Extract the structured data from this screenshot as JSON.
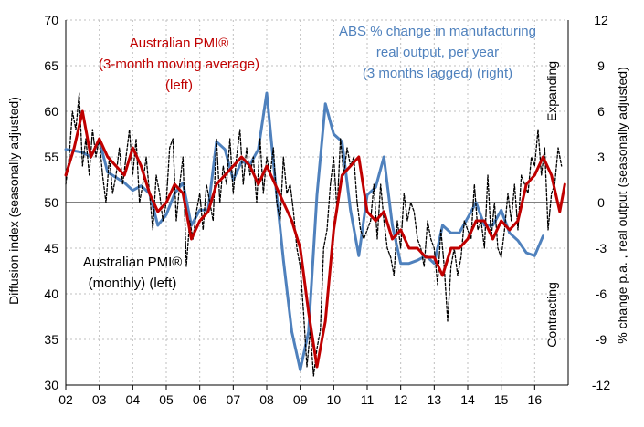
{
  "chart_data": {
    "type": "line",
    "title": "",
    "left_axis": {
      "label": "Diffusion index (seasonally adjusted)",
      "range": [
        30,
        70
      ],
      "ticks": [
        "70",
        "65",
        "60",
        "55",
        "50",
        "45",
        "40",
        "35",
        "30"
      ]
    },
    "right_axis": {
      "label": "% change p.a. , real output (seasonally adjusted)",
      "range": [
        -12,
        12
      ],
      "ticks": [
        "12",
        "9",
        "6",
        "3",
        "0",
        "-3",
        "-6",
        "-9",
        "-12"
      ]
    },
    "x_axis": {
      "ticks": [
        "02",
        "03",
        "04",
        "05",
        "06",
        "07",
        "08",
        "09",
        "10",
        "11",
        "12",
        "13",
        "14",
        "15",
        "16"
      ],
      "range": [
        2002.0,
        2017.0
      ]
    },
    "side_labels": {
      "expanding": "Expanding",
      "contracting": "Contracting"
    },
    "annotations": {
      "pmi_ma": [
        "Australian PMI®",
        "(3-month moving average)",
        "(left)"
      ],
      "abs": [
        "ABS % change in manufacturing",
        "real output, per year",
        "(3 months lagged) (right)"
      ],
      "pmi_monthly": [
        "Australian PMI®",
        "(monthly) (left)"
      ]
    },
    "series": [
      {
        "name": "Australian PMI (monthly) (left)",
        "axis": "left",
        "color": "#000000",
        "style": "dashed",
        "x": [
          2002.0,
          2002.1,
          2002.2,
          2002.3,
          2002.4,
          2002.5,
          2002.6,
          2002.7,
          2002.8,
          2002.9,
          2003.0,
          2003.1,
          2003.2,
          2003.3,
          2003.4,
          2003.5,
          2003.6,
          2003.7,
          2003.8,
          2003.9,
          2004.0,
          2004.1,
          2004.2,
          2004.3,
          2004.4,
          2004.5,
          2004.6,
          2004.7,
          2004.8,
          2004.9,
          2005.0,
          2005.1,
          2005.2,
          2005.3,
          2005.4,
          2005.5,
          2005.6,
          2005.7,
          2005.8,
          2005.9,
          2006.0,
          2006.1,
          2006.2,
          2006.3,
          2006.4,
          2006.5,
          2006.6,
          2006.7,
          2006.8,
          2006.9,
          2007.0,
          2007.1,
          2007.2,
          2007.3,
          2007.4,
          2007.5,
          2007.6,
          2007.7,
          2007.8,
          2007.9,
          2008.0,
          2008.1,
          2008.2,
          2008.3,
          2008.4,
          2008.5,
          2008.6,
          2008.7,
          2008.8,
          2008.9,
          2009.0,
          2009.1,
          2009.2,
          2009.3,
          2009.4,
          2009.5,
          2009.6,
          2009.7,
          2009.8,
          2009.9,
          2010.0,
          2010.1,
          2010.2,
          2010.3,
          2010.4,
          2010.5,
          2010.6,
          2010.7,
          2010.8,
          2010.9,
          2011.0,
          2011.1,
          2011.2,
          2011.3,
          2011.4,
          2011.5,
          2011.6,
          2011.7,
          2011.8,
          2011.9,
          2012.0,
          2012.1,
          2012.2,
          2012.3,
          2012.4,
          2012.5,
          2012.6,
          2012.7,
          2012.8,
          2012.9,
          2013.0,
          2013.1,
          2013.2,
          2013.3,
          2013.4,
          2013.5,
          2013.6,
          2013.7,
          2013.8,
          2013.9,
          2014.0,
          2014.1,
          2014.2,
          2014.3,
          2014.4,
          2014.5,
          2014.6,
          2014.7,
          2014.8,
          2014.9,
          2015.0,
          2015.1,
          2015.2,
          2015.3,
          2015.4,
          2015.5,
          2015.6,
          2015.7,
          2015.8,
          2015.9,
          2016.0,
          2016.1,
          2016.2,
          2016.3,
          2016.4,
          2016.5,
          2016.6,
          2016.7,
          2016.8
        ],
        "values": [
          52,
          55,
          60,
          58,
          62,
          54,
          57,
          53,
          58,
          55,
          57,
          53,
          50,
          55,
          51,
          53,
          56,
          52,
          55,
          58,
          53,
          57,
          50,
          52,
          55,
          51,
          47,
          53,
          51,
          48,
          50,
          56,
          57,
          48,
          52,
          55,
          43,
          48,
          46,
          49,
          51,
          47,
          52,
          50,
          48,
          57,
          50,
          54,
          52,
          57,
          51,
          55,
          58,
          52,
          56,
          53,
          55,
          50,
          57,
          51,
          55,
          53,
          56,
          50,
          48,
          55,
          51,
          52,
          49,
          45,
          43,
          38,
          32,
          36,
          31,
          34,
          36,
          45,
          47,
          52,
          55,
          49,
          57,
          53,
          56,
          54,
          55,
          50,
          47,
          46,
          47,
          48,
          52,
          46,
          52,
          48,
          45,
          44,
          42,
          48,
          45,
          51,
          48,
          50,
          49,
          46,
          45,
          43,
          48,
          46,
          45,
          41,
          47,
          43,
          37,
          43,
          45,
          42,
          44,
          48,
          47,
          46,
          52,
          47,
          48,
          45,
          53,
          46,
          50,
          45,
          44,
          47,
          51,
          48,
          52,
          47,
          53,
          52,
          51,
          55,
          54,
          58,
          53,
          56,
          47,
          51,
          52,
          56,
          54
        ]
      },
      {
        "name": "Australian PMI (3-month moving average) (left)",
        "axis": "left",
        "color": "#c00000",
        "style": "solid",
        "x": [
          2002.0,
          2002.25,
          2002.5,
          2002.75,
          2003.0,
          2003.25,
          2003.5,
          2003.75,
          2004.0,
          2004.25,
          2004.5,
          2004.75,
          2005.0,
          2005.25,
          2005.5,
          2005.75,
          2006.0,
          2006.25,
          2006.5,
          2006.75,
          2007.0,
          2007.25,
          2007.5,
          2007.75,
          2008.0,
          2008.25,
          2008.5,
          2008.75,
          2009.0,
          2009.25,
          2009.5,
          2009.75,
          2010.0,
          2010.25,
          2010.5,
          2010.75,
          2011.0,
          2011.25,
          2011.5,
          2011.75,
          2012.0,
          2012.25,
          2012.5,
          2012.75,
          2013.0,
          2013.25,
          2013.5,
          2013.75,
          2014.0,
          2014.25,
          2014.5,
          2014.75,
          2015.0,
          2015.25,
          2015.5,
          2015.75,
          2016.0,
          2016.25,
          2016.5,
          2016.75,
          2016.9
        ],
        "values": [
          53,
          56,
          60,
          55,
          57,
          55,
          54,
          53,
          56,
          54,
          51,
          49,
          50,
          52,
          51,
          46,
          48,
          49,
          52,
          53,
          54,
          55,
          54,
          52,
          54,
          52,
          50,
          48,
          45,
          38,
          32,
          37,
          47,
          53,
          54,
          55,
          49,
          48,
          49,
          46,
          47,
          45,
          45,
          44,
          44,
          42,
          45,
          45,
          46,
          48,
          48,
          46,
          48,
          47,
          48,
          52,
          53,
          55,
          53,
          49,
          52
        ]
      },
      {
        "name": "ABS % change in manufacturing real output, per year (3 months lagged) (right)",
        "axis": "right",
        "color": "#4f81bd",
        "style": "solid",
        "x": [
          2002.0,
          2002.5,
          2002.75,
          2003.0,
          2003.25,
          2003.75,
          2004.0,
          2004.25,
          2004.5,
          2004.75,
          2005.0,
          2005.25,
          2005.5,
          2005.75,
          2006.0,
          2006.25,
          2006.5,
          2006.75,
          2007.0,
          2007.25,
          2007.5,
          2007.75,
          2008.0,
          2008.25,
          2008.5,
          2008.75,
          2009.0,
          2009.25,
          2009.5,
          2009.75,
          2010.0,
          2010.25,
          2010.5,
          2010.75,
          2011.0,
          2011.25,
          2011.5,
          2011.75,
          2012.0,
          2012.25,
          2012.5,
          2012.75,
          2013.0,
          2013.25,
          2013.5,
          2013.75,
          2014.0,
          2014.25,
          2014.5,
          2014.75,
          2015.0,
          2015.25,
          2015.5,
          2015.75,
          2016.0,
          2016.25
        ],
        "values": [
          3.5,
          3.3,
          3.0,
          4.1,
          2.0,
          1.3,
          0.8,
          1.1,
          0.6,
          -1.5,
          -0.8,
          0.6,
          1.3,
          -1.5,
          -0.5,
          -0.5,
          4.0,
          3.5,
          1.5,
          2.7,
          2.5,
          3.5,
          7.2,
          1.5,
          -3.8,
          -8.5,
          -11,
          -8.5,
          0.5,
          6.5,
          4.5,
          4.0,
          -0.5,
          -3.5,
          0.5,
          1.0,
          3.0,
          -1.5,
          -4.0,
          -4.0,
          -3.8,
          -3.5,
          -4.0,
          -1.5,
          -2.0,
          -2.0,
          -1.0,
          0.0,
          -1.5,
          -1.5,
          -0.5,
          -2.0,
          -2.5,
          -3.3,
          -3.5,
          -2.2
        ]
      }
    ],
    "zero_line": 50
  }
}
